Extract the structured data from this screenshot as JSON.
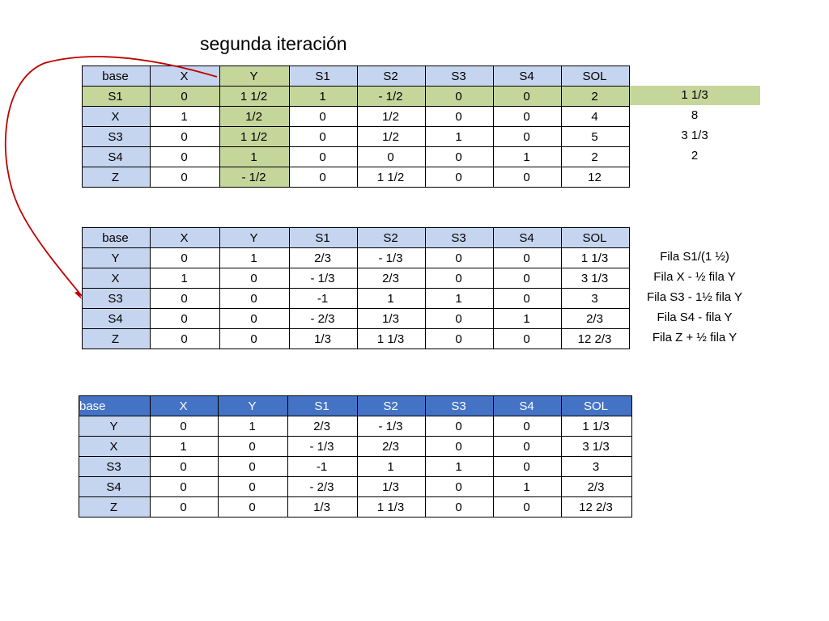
{
  "title": "segunda iteración",
  "colors": {
    "header_blue": "#c6d5ef",
    "pivot_green": "#c5d69b",
    "header_dark": "#4472c4",
    "arrow_red": "#c00000"
  },
  "tables": [
    {
      "header": [
        "base",
        "X",
        "Y",
        "S1",
        "S2",
        "S3",
        "S4",
        "SOL"
      ],
      "rows": [
        [
          "S1",
          "0",
          "1 1/2",
          "1",
          "- 1/2",
          "0",
          "0",
          "2"
        ],
        [
          "X",
          "1",
          "1/2",
          "0",
          "1/2",
          "0",
          "0",
          "4"
        ],
        [
          "S3",
          "0",
          "1 1/2",
          "0",
          "1/2",
          "1",
          "0",
          "5"
        ],
        [
          "S4",
          "0",
          "1",
          "0",
          "0",
          "0",
          "1",
          "2"
        ],
        [
          "Z",
          "0",
          "- 1/2",
          "0",
          "1 1/2",
          "0",
          "0",
          "12"
        ]
      ],
      "side": [
        "1 1/3",
        "8",
        "3 1/3",
        "2"
      ]
    },
    {
      "header": [
        "base",
        "X",
        "Y",
        "S1",
        "S2",
        "S3",
        "S4",
        "SOL"
      ],
      "rows": [
        [
          "Y",
          "0",
          "1",
          "2/3",
          "- 1/3",
          "0",
          "0",
          "1 1/3"
        ],
        [
          "X",
          "1",
          "0",
          "- 1/3",
          "2/3",
          "0",
          "0",
          "3 1/3"
        ],
        [
          "S3",
          "0",
          "0",
          "-1",
          "1",
          "1",
          "0",
          "3"
        ],
        [
          "S4",
          "0",
          "0",
          "- 2/3",
          "1/3",
          "0",
          "1",
          "2/3"
        ],
        [
          "Z",
          "0",
          "0",
          "1/3",
          "1 1/3",
          "0",
          "0",
          "12 2/3"
        ]
      ],
      "side": [
        "Fila S1/(1 ½)",
        "Fila X - ½ fila Y",
        "Fila S3 - 1½ fila Y",
        "Fila S4 -  fila Y",
        "Fila Z + ½ fila Y"
      ]
    },
    {
      "header": [
        "base",
        "X",
        "Y",
        "S1",
        "S2",
        "S3",
        "S4",
        "SOL"
      ],
      "rows": [
        [
          "Y",
          "0",
          "1",
          "2/3",
          "- 1/3",
          "0",
          "0",
          "1 1/3"
        ],
        [
          "X",
          "1",
          "0",
          "- 1/3",
          "2/3",
          "0",
          "0",
          "3 1/3"
        ],
        [
          "S3",
          "0",
          "0",
          "-1",
          "1",
          "1",
          "0",
          "3"
        ],
        [
          "S4",
          "0",
          "0",
          "- 2/3",
          "1/3",
          "0",
          "1",
          "2/3"
        ],
        [
          "Z",
          "0",
          "0",
          "1/3",
          "1 1/3",
          "0",
          "0",
          "12 2/3"
        ]
      ]
    }
  ]
}
